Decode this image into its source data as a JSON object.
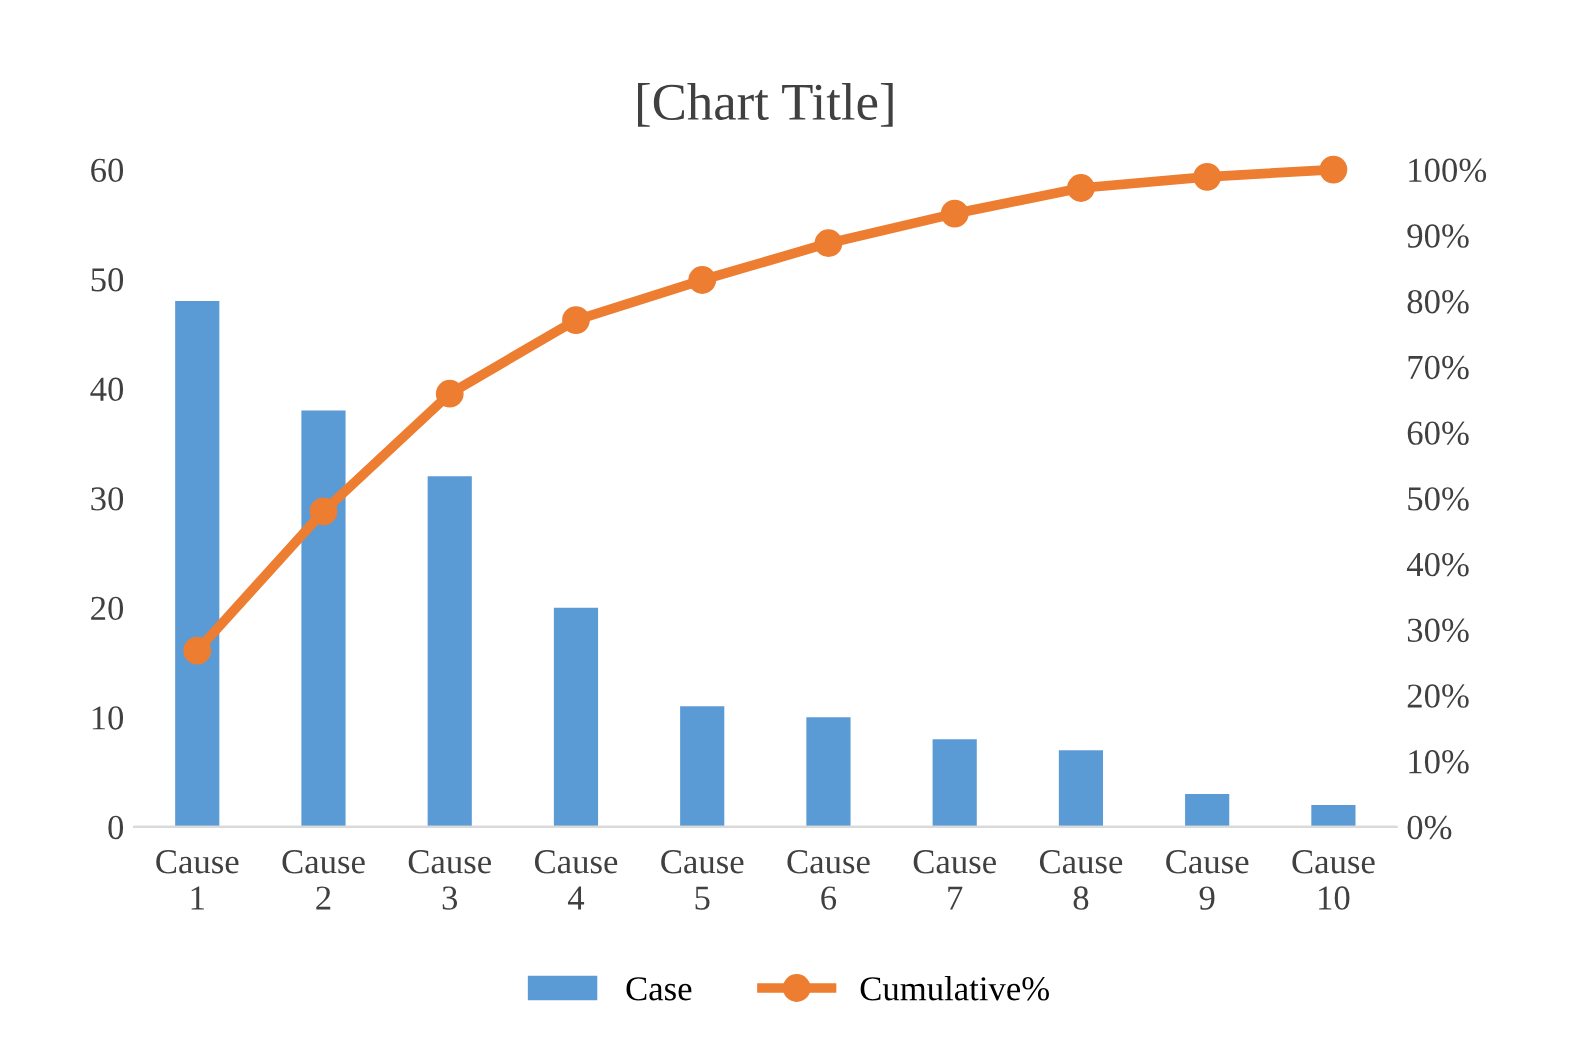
{
  "chart_data": {
    "type": "bar",
    "title": "[Chart Title]",
    "categories": [
      "Cause 1",
      "Cause 2",
      "Cause 3",
      "Cause 4",
      "Cause 5",
      "Cause 6",
      "Cause 7",
      "Cause 8",
      "Cause 9",
      "Cause 10"
    ],
    "series": [
      {
        "name": "Case",
        "color": "#5b9bd5",
        "values": [
          48,
          38,
          32,
          20,
          11,
          10,
          8,
          7,
          3,
          2
        ]
      },
      {
        "name": "Cumulative%",
        "type": "line",
        "axis": "y2",
        "color": "#ed7d31",
        "marker": "circle",
        "values": [
          26.8,
          48.0,
          65.9,
          77.1,
          83.2,
          88.8,
          93.3,
          97.2,
          98.9,
          100
        ]
      }
    ],
    "ylim": [
      0,
      60
    ],
    "yticks": [
      0,
      10,
      20,
      30,
      40,
      50,
      60
    ],
    "y2lim": [
      0,
      100
    ],
    "y2ticks": [
      {
        "value": 0,
        "label": "0%"
      },
      {
        "value": 10,
        "label": "10%"
      },
      {
        "value": 20,
        "label": "20%"
      },
      {
        "value": 30,
        "label": "30%"
      },
      {
        "value": 40,
        "label": "40%"
      },
      {
        "value": 50,
        "label": "50%"
      },
      {
        "value": 60,
        "label": "60%"
      },
      {
        "value": 70,
        "label": "70%"
      },
      {
        "value": 80,
        "label": "80%"
      },
      {
        "value": 90,
        "label": "90%"
      },
      {
        "value": 100,
        "label": "100%"
      }
    ],
    "legend": "bottom",
    "grid": false
  }
}
